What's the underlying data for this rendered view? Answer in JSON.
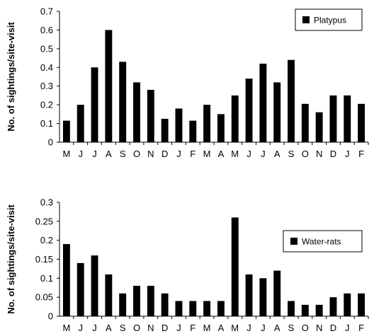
{
  "chart_data": [
    {
      "type": "bar",
      "ylabel": "No. of sightings/site-visit",
      "ylim": [
        0,
        0.7
      ],
      "yticks": [
        "0",
        "0.1",
        "0.2",
        "0.3",
        "0.4",
        "0.5",
        "0.6",
        "0.7"
      ],
      "categories": [
        "M",
        "J",
        "J",
        "A",
        "S",
        "O",
        "N",
        "D",
        "J",
        "F",
        "M",
        "A",
        "M",
        "J",
        "J",
        "A",
        "S",
        "O",
        "N",
        "D",
        "J",
        "F"
      ],
      "series": [
        {
          "name": "Platypus",
          "values": [
            0.115,
            0.2,
            0.4,
            0.6,
            0.43,
            0.32,
            0.28,
            0.125,
            0.18,
            0.115,
            0.2,
            0.15,
            0.25,
            0.34,
            0.42,
            0.32,
            0.44,
            0.205,
            0.16,
            0.25,
            0.25,
            0.205
          ]
        }
      ],
      "legend": "top-right",
      "grid": false,
      "bar_color": "#000000"
    },
    {
      "type": "bar",
      "ylabel": "No. of sightings/site-visit",
      "ylim": [
        0,
        0.3
      ],
      "yticks": [
        "0",
        "0.05",
        "0.1",
        "0.15",
        "0.2",
        "0.25",
        "0.3"
      ],
      "categories": [
        "M",
        "J",
        "J",
        "A",
        "S",
        "O",
        "N",
        "D",
        "J",
        "F",
        "M",
        "A",
        "M",
        "J",
        "J",
        "A",
        "S",
        "O",
        "N",
        "D",
        "J",
        "F"
      ],
      "series": [
        {
          "name": "Water-rats",
          "values": [
            0.19,
            0.14,
            0.16,
            0.11,
            0.06,
            0.08,
            0.08,
            0.06,
            0.04,
            0.04,
            0.04,
            0.04,
            0.26,
            0.11,
            0.1,
            0.12,
            0.04,
            0.03,
            0.03,
            0.05,
            0.06,
            0.06
          ]
        }
      ],
      "legend": "top-right",
      "grid": false,
      "bar_color": "#000000"
    }
  ]
}
